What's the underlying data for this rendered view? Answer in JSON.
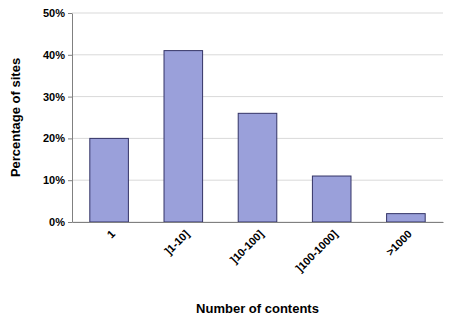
{
  "chart_data": {
    "type": "bar",
    "x_label": "Number of contents",
    "y_label": "Percentage of sites",
    "categories": [
      "1",
      "]1-10]",
      "]10-100]",
      "]100-1000]",
      ">1000"
    ],
    "values": [
      20,
      41,
      26,
      11,
      2
    ],
    "color": "#9aa0da",
    "ylim": [
      0,
      50
    ],
    "yticks": [
      {
        "value": 0,
        "label": "0%"
      },
      {
        "value": 10,
        "label": "10%"
      },
      {
        "value": 20,
        "label": "20%"
      },
      {
        "value": 30,
        "label": "30%"
      },
      {
        "value": 40,
        "label": "40%"
      },
      {
        "value": 50,
        "label": "50%"
      }
    ],
    "grid": true
  }
}
